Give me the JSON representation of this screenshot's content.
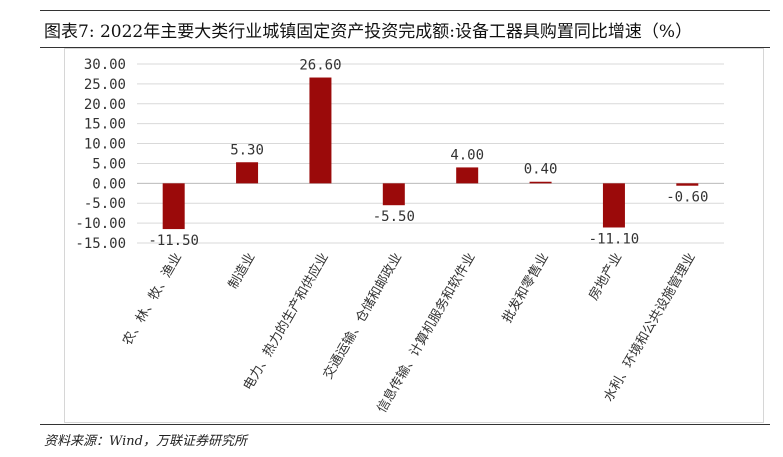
{
  "title": "图表7:  2022年主要大类行业城镇固定资产投资完成额:设备工器具购置同比增速（%）",
  "source": "资料来源：Wind，万联证券研究所",
  "chart_data": {
    "type": "bar",
    "categories": [
      "农、林、牧、渔业",
      "制造业",
      "电力、热力的生产和供应业",
      "交通运输、仓储和邮政业",
      "信息传输、计算机服务和软件业",
      "批发和零售业",
      "房地产业",
      "水利、环境和公共设施管理业"
    ],
    "values": [
      -11.5,
      5.3,
      26.6,
      -5.5,
      4.0,
      0.4,
      -11.1,
      -0.6
    ],
    "value_labels": [
      "-11.50",
      "5.30",
      "26.60",
      "-5.50",
      "4.00",
      "0.40",
      "-11.10",
      "-0.60"
    ],
    "yticks": [
      "30.00",
      "25.00",
      "20.00",
      "15.00",
      "10.00",
      "5.00",
      "0.00",
      "-5.00",
      "-10.00",
      "-15.00"
    ],
    "ylim": [
      -15,
      30
    ],
    "grid": true,
    "bar_color": "#9b0a0a"
  }
}
